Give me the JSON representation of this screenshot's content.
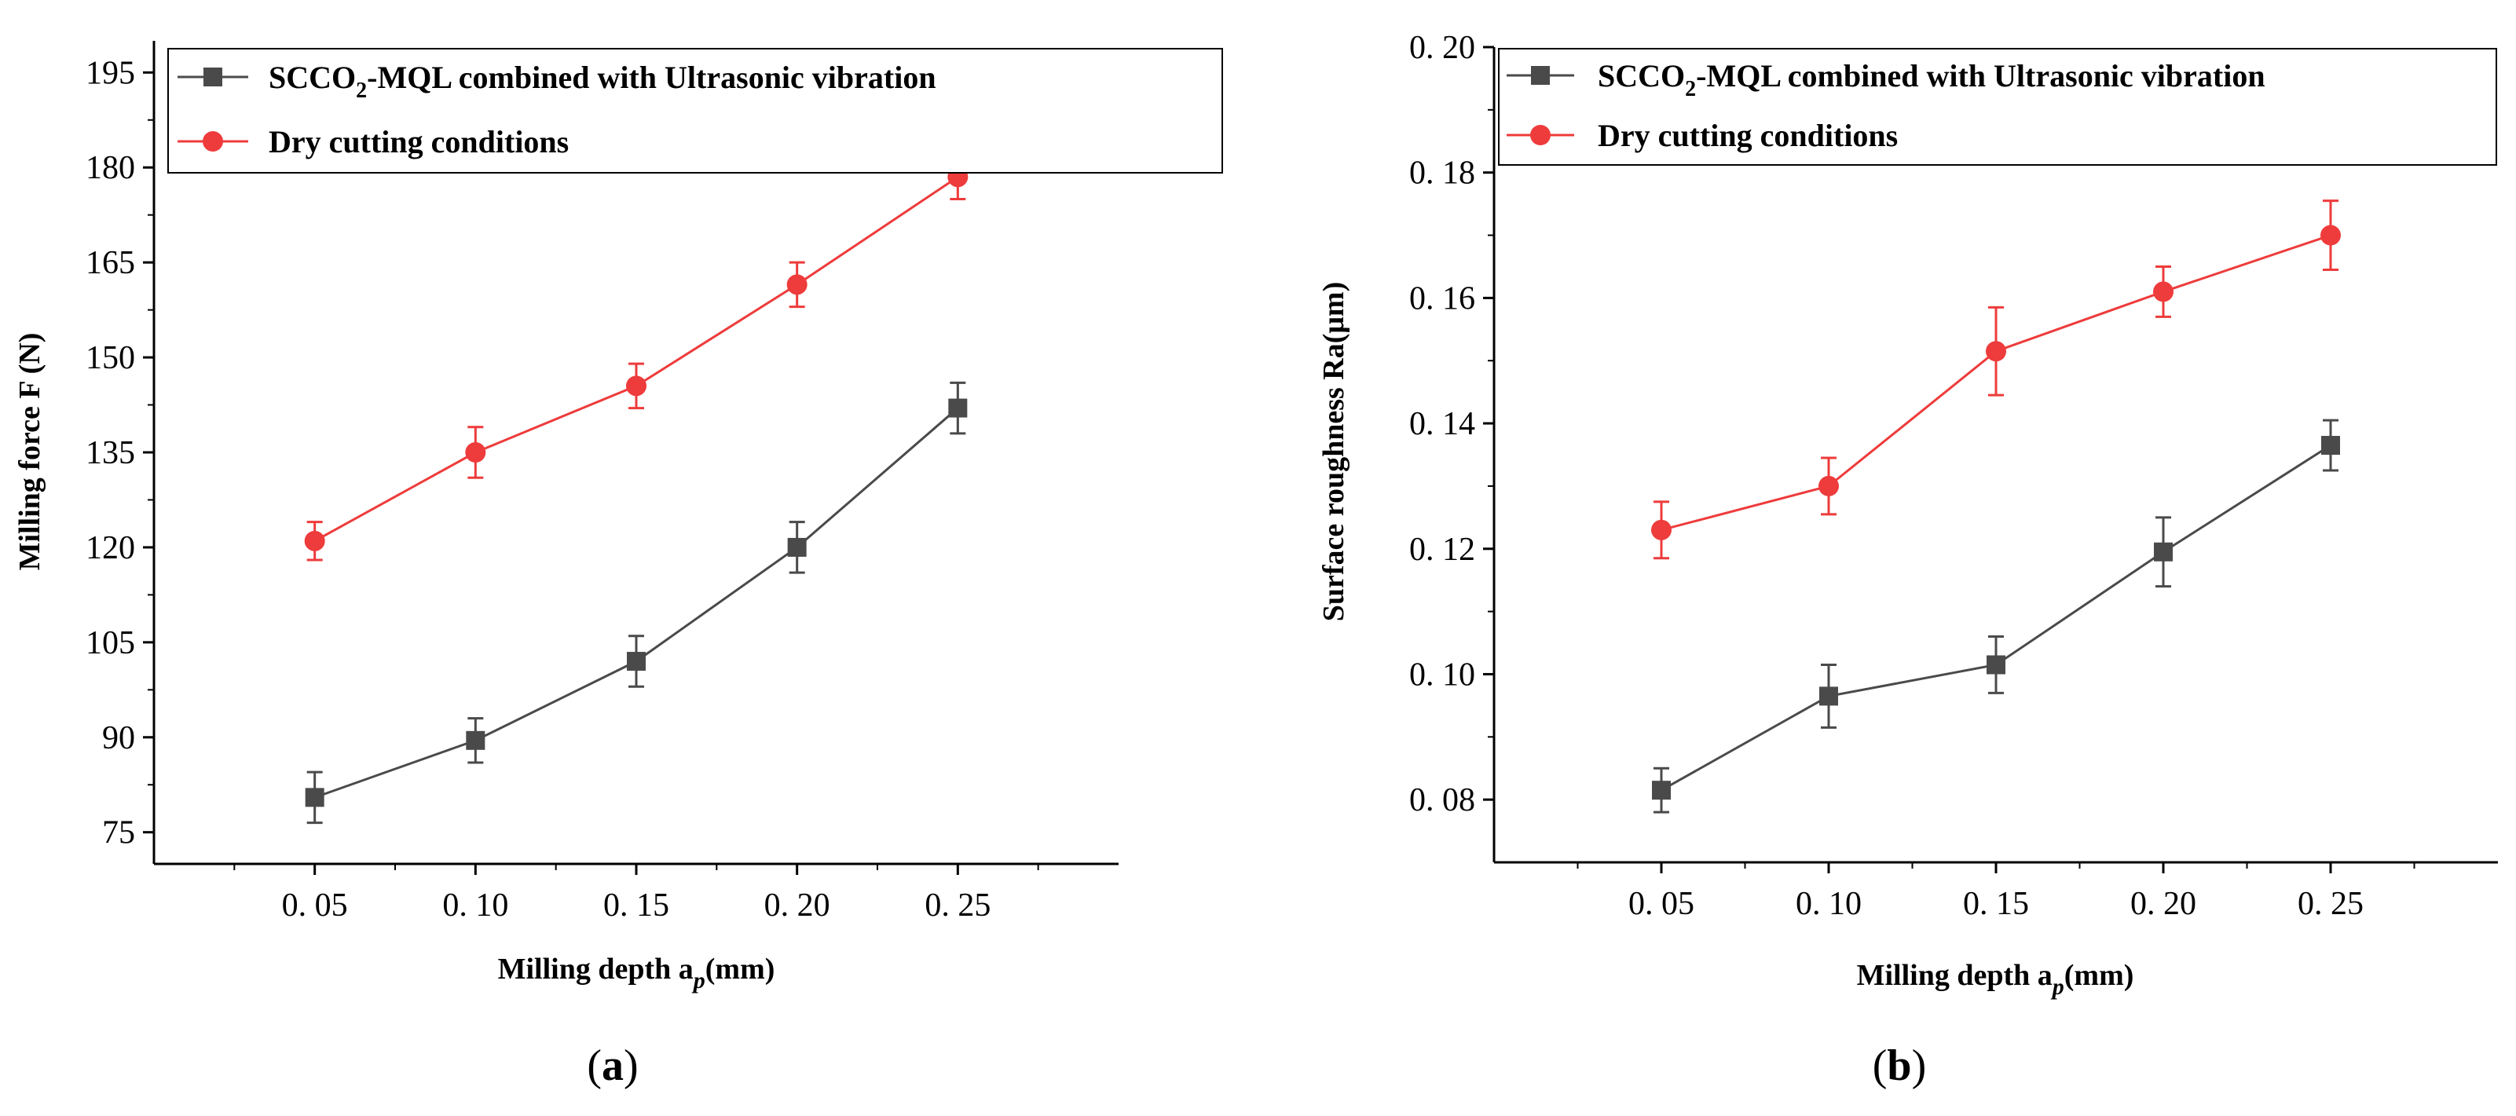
{
  "chart_data": [
    {
      "type": "line",
      "panel_label": "(a)",
      "panel_letter": "a",
      "xlabel": "Milling depth a",
      "xlabel_sub": "p",
      "xlabel_unit": "(mm)",
      "ylabel": "Milling force  F (N)",
      "categories": [
        "0. 05",
        "0. 10",
        "0. 15",
        "0. 20",
        "0. 25"
      ],
      "x": [
        0.05,
        0.1,
        0.15,
        0.2,
        0.25
      ],
      "xlim": [
        0.0,
        0.3
      ],
      "ylim": [
        70,
        200
      ],
      "yticks": [
        75,
        90,
        105,
        120,
        135,
        150,
        165,
        180,
        195
      ],
      "ytick_labels": [
        "75",
        "90",
        "105",
        "120",
        "135",
        "150",
        "165",
        "180",
        "195"
      ],
      "legend_position": "top",
      "series": [
        {
          "name": "SCCO2-MQL combined with Ultrasonic vibration",
          "name_parts": [
            "SCCO",
            "2",
            "-MQL combined with Ultrasonic vibration"
          ],
          "color": "#4a4a4a",
          "marker": "square",
          "values": [
            80.5,
            89.5,
            102,
            120,
            142
          ],
          "errors": [
            4,
            3.5,
            4,
            4,
            4
          ]
        },
        {
          "name": "Dry cutting conditions",
          "color": "#ee3b3b",
          "marker": "circle",
          "values": [
            121,
            135,
            145.5,
            161.5,
            178.5
          ],
          "errors": [
            3,
            4,
            3.5,
            3.5,
            3.5
          ]
        }
      ]
    },
    {
      "type": "line",
      "panel_label": "(b)",
      "panel_letter": "b",
      "xlabel": "Milling depth a",
      "xlabel_sub": "p",
      "xlabel_unit": "(mm)",
      "ylabel": "Surface roughness Ra(μm)",
      "categories": [
        "0. 05",
        "0. 10",
        "0. 15",
        "0. 20",
        "0. 25"
      ],
      "x": [
        0.05,
        0.1,
        0.15,
        0.2,
        0.25
      ],
      "xlim": [
        0.0,
        0.3
      ],
      "ylim": [
        0.07,
        0.2
      ],
      "yticks": [
        0.08,
        0.1,
        0.12,
        0.14,
        0.16,
        0.18,
        0.2
      ],
      "ytick_labels": [
        "0. 08",
        "0. 10",
        "0. 12",
        "0. 14",
        "0. 16",
        "0. 18",
        "0. 20"
      ],
      "legend_position": "top",
      "series": [
        {
          "name": "SCCO2-MQL combined with Ultrasonic vibration",
          "name_parts": [
            "SCCO",
            "2",
            "-MQL combined with Ultrasonic vibration"
          ],
          "color": "#4a4a4a",
          "marker": "square",
          "values": [
            0.0815,
            0.0965,
            0.1015,
            0.1195,
            0.1365
          ],
          "errors": [
            0.0035,
            0.005,
            0.0045,
            0.0055,
            0.004
          ]
        },
        {
          "name": "Dry cutting conditions",
          "color": "#ee3b3b",
          "marker": "circle",
          "values": [
            0.123,
            0.13,
            0.1515,
            0.161,
            0.17
          ],
          "errors": [
            0.0045,
            0.0045,
            0.007,
            0.004,
            0.0055
          ]
        }
      ]
    }
  ]
}
